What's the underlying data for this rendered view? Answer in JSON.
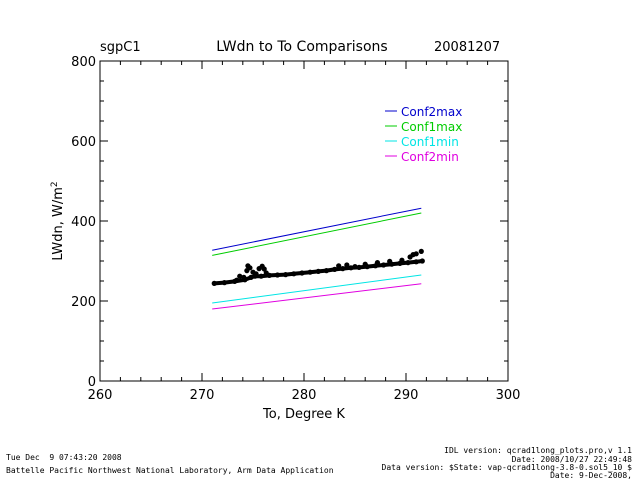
{
  "header": {
    "site": "sgpC1",
    "title": "LWdn to To Comparisons",
    "date": "20081207"
  },
  "chart_data": {
    "type": "line",
    "title": "LWdn to To Comparisons",
    "xlabel": "To, Degree K",
    "ylabel_main": "LWdn, W/m",
    "ylabel_sup": "2",
    "xlim": [
      260,
      300
    ],
    "ylim": [
      0,
      800
    ],
    "xticks": [
      260,
      270,
      280,
      290,
      300
    ],
    "yticks": [
      0,
      200,
      400,
      600,
      800
    ],
    "series": [
      {
        "name": "Conf2max",
        "color": "#0000cc",
        "x": [
          271,
          291.5
        ],
        "y": [
          327,
          432
        ]
      },
      {
        "name": "Conf1max",
        "color": "#00cc00",
        "x": [
          271,
          291.5
        ],
        "y": [
          314,
          420
        ]
      },
      {
        "name": "Conf1min",
        "color": "#00e5e5",
        "x": [
          271,
          291.5
        ],
        "y": [
          195,
          265
        ]
      },
      {
        "name": "Conf2min",
        "color": "#e000e0",
        "x": [
          271,
          291.5
        ],
        "y": [
          180,
          243
        ]
      }
    ],
    "observations": {
      "name": "LWdn observed",
      "color": "#000000",
      "points": [
        [
          271.2,
          244
        ],
        [
          272.2,
          246
        ],
        [
          273.2,
          249
        ],
        [
          274.2,
          253
        ],
        [
          274.8,
          259
        ],
        [
          275.2,
          262
        ],
        [
          275.8,
          262
        ],
        [
          276.6,
          264
        ],
        [
          277.4,
          265
        ],
        [
          278.2,
          266
        ],
        [
          279,
          268
        ],
        [
          279.8,
          270
        ],
        [
          280.6,
          272
        ],
        [
          281.4,
          274
        ],
        [
          282.2,
          276
        ],
        [
          283,
          279
        ],
        [
          283.8,
          281
        ],
        [
          284.6,
          283
        ],
        [
          285.4,
          284
        ],
        [
          286.2,
          286
        ],
        [
          287,
          288
        ],
        [
          287.8,
          290
        ],
        [
          288.6,
          292
        ],
        [
          289.4,
          294
        ],
        [
          290.2,
          296
        ],
        [
          291,
          298
        ],
        [
          291.6,
          300
        ],
        [
          273.4,
          252
        ],
        [
          273.7,
          262
        ],
        [
          274.1,
          259
        ],
        [
          274.4,
          276
        ],
        [
          274.5,
          288
        ],
        [
          274.7,
          283
        ],
        [
          275,
          272
        ],
        [
          275.3,
          268
        ],
        [
          275.6,
          281
        ],
        [
          275.9,
          287
        ],
        [
          276.1,
          280
        ],
        [
          276.3,
          270
        ],
        [
          283.4,
          288
        ],
        [
          284.2,
          290
        ],
        [
          285,
          286
        ],
        [
          286,
          292
        ],
        [
          287.2,
          296
        ],
        [
          288.4,
          299
        ],
        [
          289.6,
          302
        ],
        [
          290.4,
          310
        ],
        [
          291,
          318
        ],
        [
          291.5,
          324
        ],
        [
          290.7,
          316
        ]
      ]
    },
    "legend_position": "top-right"
  },
  "footer": {
    "timestamp": "Tue Dec  9 07:43:20 2008",
    "institution": "Battelle Pacific Northwest National Laboratory, Arm Data Application",
    "idl_version": "IDL version: qcrad1long_plots.pro,v 1.1",
    "idl_date": "Date: 2008/10/27 22:49:48",
    "data_version": "Data version: $State: vap-qcrad1long-3.8-0.sol5_10 $",
    "data_date": "Date: 9-Dec-2008,"
  }
}
